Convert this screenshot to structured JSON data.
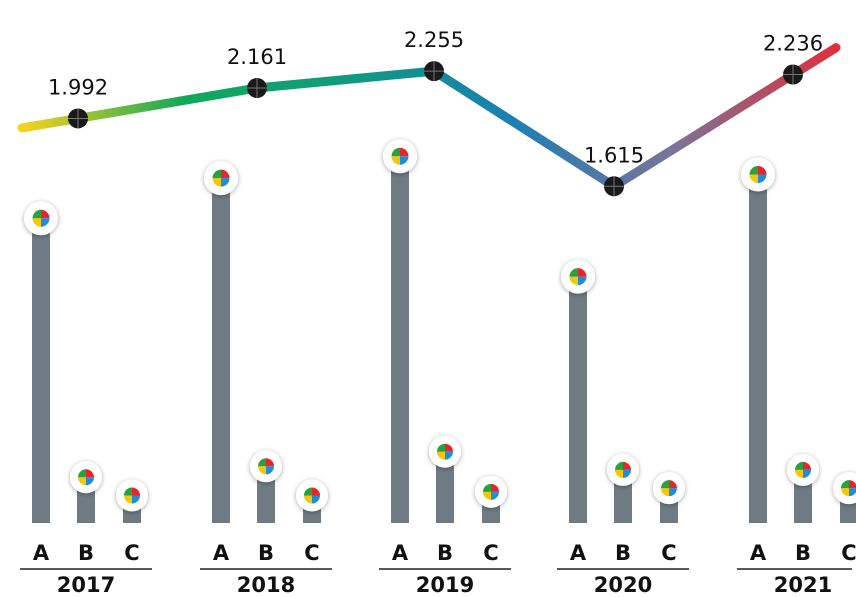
{
  "chart_data": {
    "type": "bar",
    "title": "",
    "xlabel": "",
    "ylabel": "",
    "years": [
      "2017",
      "2018",
      "2019",
      "2020",
      "2021"
    ],
    "sub_categories": [
      "A",
      "B",
      "C"
    ],
    "bars": [
      {
        "year": "2017",
        "values": [
          0.83,
          0.12,
          0.07
        ]
      },
      {
        "year": "2018",
        "values": [
          0.94,
          0.15,
          0.07
        ]
      },
      {
        "year": "2019",
        "values": [
          1.0,
          0.19,
          0.08
        ]
      },
      {
        "year": "2020",
        "values": [
          0.67,
          0.14,
          0.09
        ]
      },
      {
        "year": "2021",
        "values": [
          0.95,
          0.14,
          0.09
        ]
      }
    ],
    "bars_ylim": [
      0,
      1.05
    ],
    "line": {
      "values": [
        1.992,
        2.161,
        2.255,
        1.615,
        2.236
      ],
      "labels": [
        "1.992",
        "2.161",
        "2.255",
        "1.615",
        "2.236"
      ],
      "ylim": [
        1.4,
        2.4
      ],
      "gradient_colors": [
        "#f6d31d",
        "#12a85a",
        "#0f9b7f",
        "#1b7fb3",
        "#7a7399",
        "#e0303a"
      ]
    },
    "bar_color": "#6e7b83",
    "marker_colors": [
      "#e5262d",
      "#1f8ed8",
      "#f5c60e",
      "#2aa13f"
    ],
    "legend": "none",
    "grid": false
  }
}
